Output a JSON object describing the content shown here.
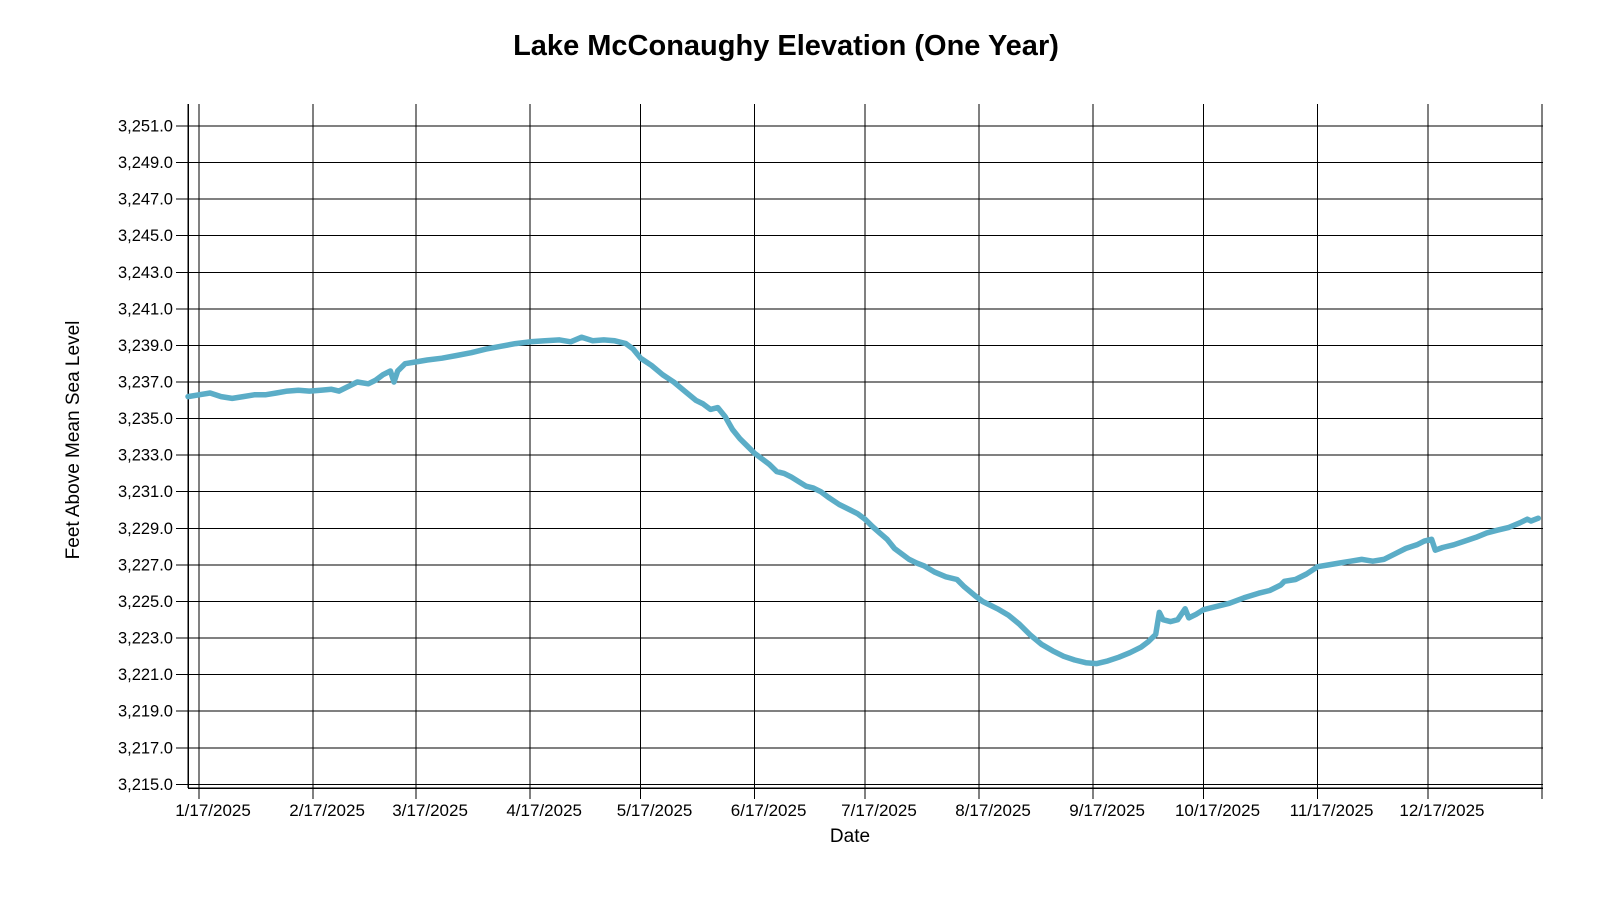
{
  "chart_data": {
    "type": "line",
    "title": "Lake McConaughy Elevation (One Year)",
    "xlabel": "Date",
    "ylabel": "Feet Above Mean Sea Level",
    "grid": true,
    "legend": "none",
    "ylim": [
      3214.8,
      3252.2
    ],
    "x_start_date": "1/14/2025",
    "x_end_date": "1/17/2026",
    "y_ticks": [
      {
        "v": 3215,
        "label": "3,215.0"
      },
      {
        "v": 3217,
        "label": "3,217.0"
      },
      {
        "v": 3219,
        "label": "3,219.0"
      },
      {
        "v": 3221,
        "label": "3,221.0"
      },
      {
        "v": 3223,
        "label": "3,223.0"
      },
      {
        "v": 3225,
        "label": "3,225.0"
      },
      {
        "v": 3227,
        "label": "3,227.0"
      },
      {
        "v": 3229,
        "label": "3,229.0"
      },
      {
        "v": 3231,
        "label": "3,231.0"
      },
      {
        "v": 3233,
        "label": "3,233.0"
      },
      {
        "v": 3235,
        "label": "3,235.0"
      },
      {
        "v": 3237,
        "label": "3,237.0"
      },
      {
        "v": 3239,
        "label": "3,239.0"
      },
      {
        "v": 3241,
        "label": "3,241.0"
      },
      {
        "v": 3243,
        "label": "3,243.0"
      },
      {
        "v": 3245,
        "label": "3,245.0"
      },
      {
        "v": 3247,
        "label": "3,247.0"
      },
      {
        "v": 3249,
        "label": "3,249.0"
      },
      {
        "v": 3251,
        "label": "3,251.0"
      }
    ],
    "x_ticks": [
      {
        "date": "1/17/2025",
        "label": "1/17/2025"
      },
      {
        "date": "2/17/2025",
        "label": "2/17/2025"
      },
      {
        "date": "3/17/2025",
        "label": "3/17/2025"
      },
      {
        "date": "4/17/2025",
        "label": "4/17/2025"
      },
      {
        "date": "5/17/2025",
        "label": "5/17/2025"
      },
      {
        "date": "6/17/2025",
        "label": "6/17/2025"
      },
      {
        "date": "7/17/2025",
        "label": "7/17/2025"
      },
      {
        "date": "8/17/2025",
        "label": "8/17/2025"
      },
      {
        "date": "9/17/2025",
        "label": "9/17/2025"
      },
      {
        "date": "10/17/2025",
        "label": "10/17/2025"
      },
      {
        "date": "11/17/2025",
        "label": "11/17/2025"
      },
      {
        "date": "12/17/2025",
        "label": "12/17/2025"
      },
      {
        "date": "1/17/2026",
        "label": ""
      }
    ],
    "series": [
      {
        "color": "#5BADC7",
        "points": [
          [
            "1/14/2025",
            3236.2
          ],
          [
            "1/17/2025",
            3236.3
          ],
          [
            "1/20/2025",
            3236.4
          ],
          [
            "1/23/2025",
            3236.2
          ],
          [
            "1/26/2025",
            3236.1
          ],
          [
            "1/29/2025",
            3236.2
          ],
          [
            "2/1/2025",
            3236.3
          ],
          [
            "2/4/2025",
            3236.3
          ],
          [
            "2/7/2025",
            3236.4
          ],
          [
            "2/10/2025",
            3236.5
          ],
          [
            "2/13/2025",
            3236.55
          ],
          [
            "2/16/2025",
            3236.5
          ],
          [
            "2/19/2025",
            3236.55
          ],
          [
            "2/22/2025",
            3236.6
          ],
          [
            "2/24/2025",
            3236.5
          ],
          [
            "2/26/2025",
            3236.7
          ],
          [
            "3/1/2025",
            3237.0
          ],
          [
            "3/4/2025",
            3236.9
          ],
          [
            "3/6/2025",
            3237.1
          ],
          [
            "3/8/2025",
            3237.4
          ],
          [
            "3/10/2025",
            3237.6
          ],
          [
            "3/11/2025",
            3237.0
          ],
          [
            "3/12/2025",
            3237.6
          ],
          [
            "3/14/2025",
            3238.0
          ],
          [
            "3/17/2025",
            3238.1
          ],
          [
            "3/20/2025",
            3238.2
          ],
          [
            "3/24/2025",
            3238.3
          ],
          [
            "3/28/2025",
            3238.45
          ],
          [
            "4/1/2025",
            3238.6
          ],
          [
            "4/5/2025",
            3238.8
          ],
          [
            "4/9/2025",
            3238.95
          ],
          [
            "4/13/2025",
            3239.1
          ],
          [
            "4/17/2025",
            3239.2
          ],
          [
            "4/21/2025",
            3239.25
          ],
          [
            "4/25/2025",
            3239.3
          ],
          [
            "4/28/2025",
            3239.2
          ],
          [
            "5/1/2025",
            3239.45
          ],
          [
            "5/4/2025",
            3239.25
          ],
          [
            "5/7/2025",
            3239.3
          ],
          [
            "5/10/2025",
            3239.25
          ],
          [
            "5/13/2025",
            3239.1
          ],
          [
            "5/15/2025",
            3238.8
          ],
          [
            "5/17/2025",
            3238.3
          ],
          [
            "5/20/2025",
            3237.9
          ],
          [
            "5/23/2025",
            3237.4
          ],
          [
            "5/26/2025",
            3237.0
          ],
          [
            "5/29/2025",
            3236.5
          ],
          [
            "6/1/2025",
            3236.0
          ],
          [
            "6/3/2025",
            3235.8
          ],
          [
            "6/5/2025",
            3235.5
          ],
          [
            "6/7/2025",
            3235.6
          ],
          [
            "6/9/2025",
            3235.1
          ],
          [
            "6/11/2025",
            3234.4
          ],
          [
            "6/13/2025",
            3233.9
          ],
          [
            "6/15/2025",
            3233.5
          ],
          [
            "6/17/2025",
            3233.1
          ],
          [
            "6/19/2025",
            3232.8
          ],
          [
            "6/21/2025",
            3232.5
          ],
          [
            "6/23/2025",
            3232.1
          ],
          [
            "6/25/2025",
            3232.0
          ],
          [
            "6/27/2025",
            3231.8
          ],
          [
            "6/29/2025",
            3231.55
          ],
          [
            "7/1/2025",
            3231.3
          ],
          [
            "7/3/2025",
            3231.2
          ],
          [
            "7/5/2025",
            3231.0
          ],
          [
            "7/7/2025",
            3230.7
          ],
          [
            "7/10/2025",
            3230.3
          ],
          [
            "7/13/2025",
            3230.0
          ],
          [
            "7/15/2025",
            3229.8
          ],
          [
            "7/17/2025",
            3229.5
          ],
          [
            "7/19/2025",
            3229.1
          ],
          [
            "7/21/2025",
            3228.75
          ],
          [
            "7/23/2025",
            3228.4
          ],
          [
            "7/25/2025",
            3227.9
          ],
          [
            "7/27/2025",
            3227.6
          ],
          [
            "7/29/2025",
            3227.3
          ],
          [
            "7/31/2025",
            3227.1
          ],
          [
            "8/2/2025",
            3226.95
          ],
          [
            "8/5/2025",
            3226.6
          ],
          [
            "8/8/2025",
            3226.35
          ],
          [
            "8/11/2025",
            3226.2
          ],
          [
            "8/13/2025",
            3225.8
          ],
          [
            "8/16/2025",
            3225.3
          ],
          [
            "8/18/2025",
            3225.0
          ],
          [
            "8/20/2025",
            3224.8
          ],
          [
            "8/22/2025",
            3224.6
          ],
          [
            "8/25/2025",
            3224.25
          ],
          [
            "8/28/2025",
            3223.75
          ],
          [
            "8/31/2025",
            3223.15
          ],
          [
            "9/3/2025",
            3222.65
          ],
          [
            "9/6/2025",
            3222.3
          ],
          [
            "9/9/2025",
            3222.0
          ],
          [
            "9/12/2025",
            3221.8
          ],
          [
            "9/15/2025",
            3221.65
          ],
          [
            "9/18/2025",
            3221.6
          ],
          [
            "9/21/2025",
            3221.75
          ],
          [
            "9/24/2025",
            3221.95
          ],
          [
            "9/27/2025",
            3222.2
          ],
          [
            "9/30/2025",
            3222.5
          ],
          [
            "10/2/2025",
            3222.8
          ],
          [
            "10/4/2025",
            3223.2
          ],
          [
            "10/5/2025",
            3224.4
          ],
          [
            "10/6/2025",
            3224.0
          ],
          [
            "10/8/2025",
            3223.9
          ],
          [
            "10/10/2025",
            3224.0
          ],
          [
            "10/12/2025",
            3224.6
          ],
          [
            "10/13/2025",
            3224.1
          ],
          [
            "10/15/2025",
            3224.3
          ],
          [
            "10/17/2025",
            3224.55
          ],
          [
            "10/20/2025",
            3224.7
          ],
          [
            "10/24/2025",
            3224.9
          ],
          [
            "10/28/2025",
            3225.2
          ],
          [
            "11/1/2025",
            3225.45
          ],
          [
            "11/4/2025",
            3225.6
          ],
          [
            "11/7/2025",
            3225.9
          ],
          [
            "11/8/2025",
            3226.1
          ],
          [
            "11/11/2025",
            3226.2
          ],
          [
            "11/14/2025",
            3226.5
          ],
          [
            "11/17/2025",
            3226.9
          ],
          [
            "11/20/2025",
            3227.0
          ],
          [
            "11/23/2025",
            3227.1
          ],
          [
            "11/26/2025",
            3227.2
          ],
          [
            "11/29/2025",
            3227.3
          ],
          [
            "12/2/2025",
            3227.2
          ],
          [
            "12/5/2025",
            3227.3
          ],
          [
            "12/8/2025",
            3227.6
          ],
          [
            "12/11/2025",
            3227.9
          ],
          [
            "12/14/2025",
            3228.1
          ],
          [
            "12/16/2025",
            3228.3
          ],
          [
            "12/18/2025",
            3228.4
          ],
          [
            "12/19/2025",
            3227.8
          ],
          [
            "12/21/2025",
            3227.95
          ],
          [
            "12/24/2025",
            3228.1
          ],
          [
            "12/27/2025",
            3228.3
          ],
          [
            "12/30/2025",
            3228.5
          ],
          [
            "1/2/2026",
            3228.75
          ],
          [
            "1/5/2026",
            3228.9
          ],
          [
            "1/8/2026",
            3229.05
          ],
          [
            "1/11/2026",
            3229.3
          ],
          [
            "1/13/2026",
            3229.5
          ],
          [
            "1/14/2026",
            3229.4
          ],
          [
            "1/16/2026",
            3229.55
          ]
        ]
      }
    ],
    "colors": {
      "line": "#5BADC7",
      "grid": "#000000",
      "axis": "#000000",
      "text": "#000000",
      "background": "#FFFFFF"
    }
  }
}
